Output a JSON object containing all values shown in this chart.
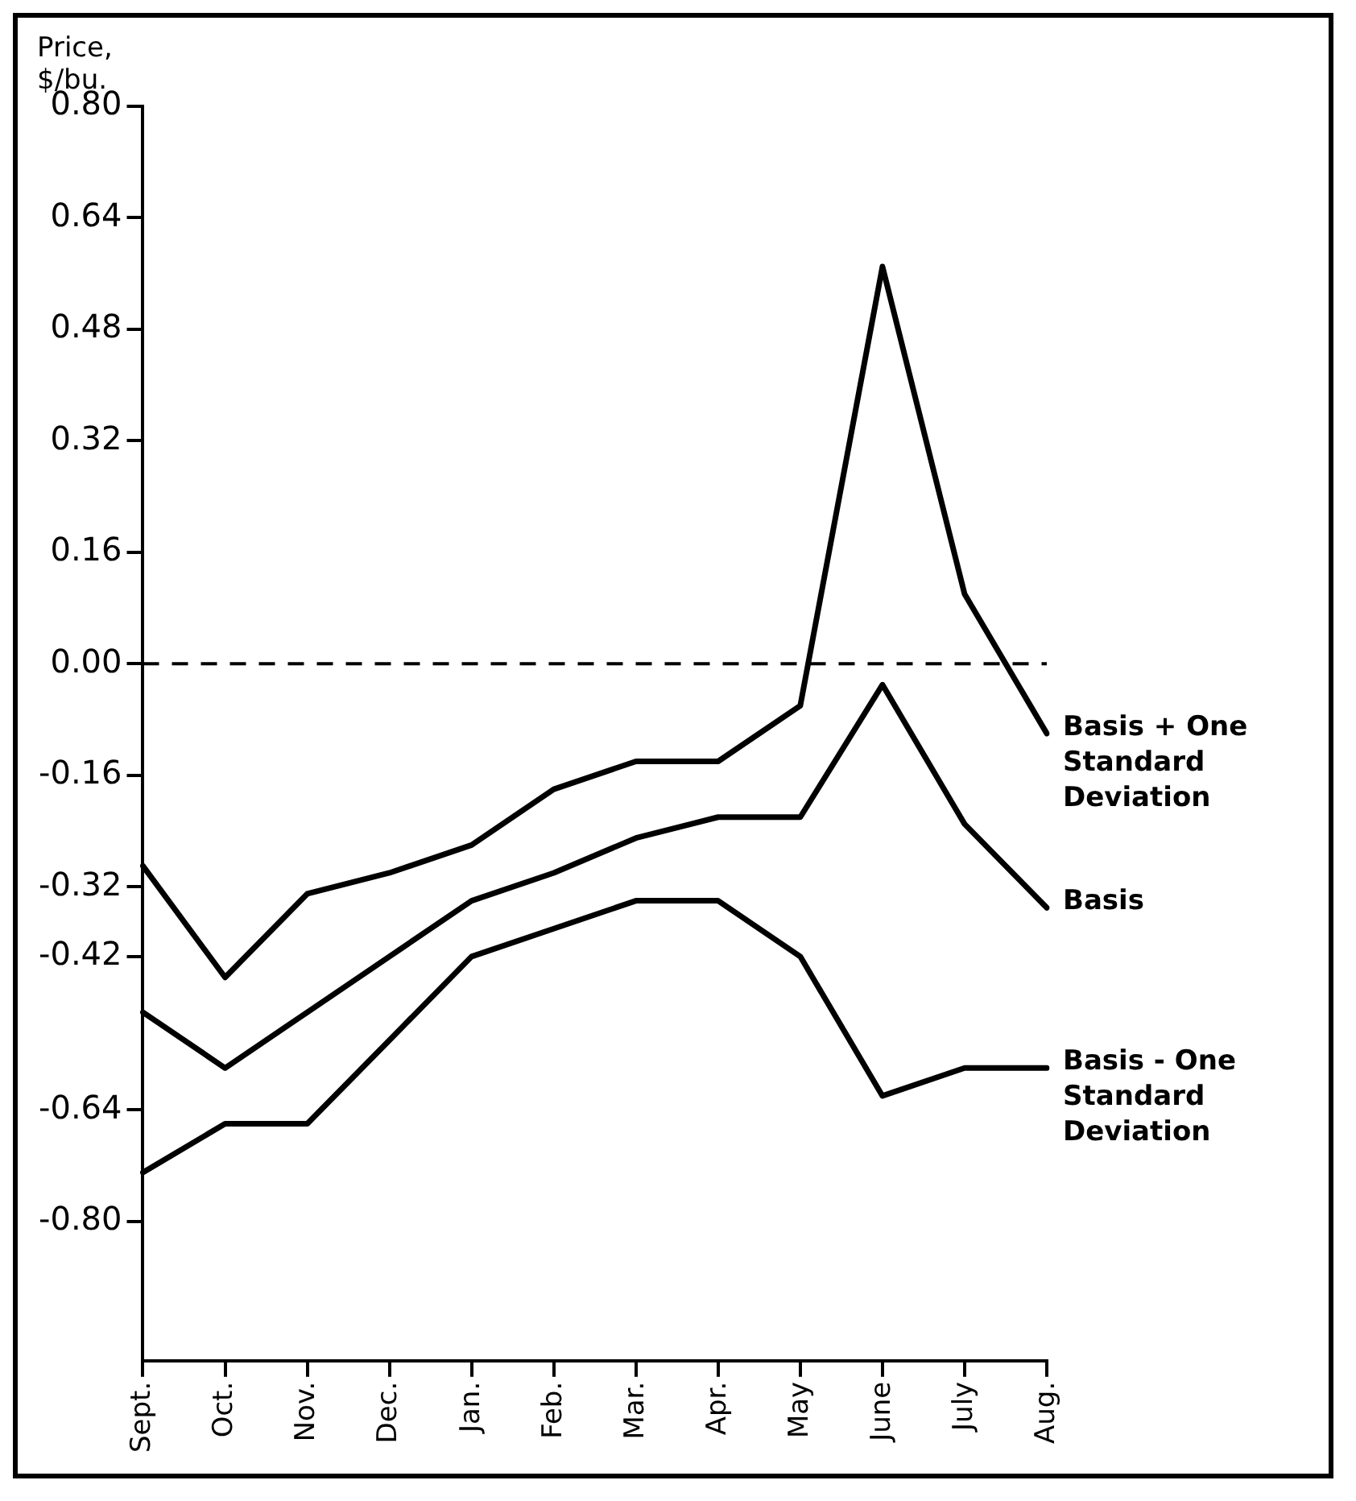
{
  "chart_data": {
    "type": "line",
    "ylabel": "Price, $/bu.",
    "categories": [
      "Sept.",
      "Oct.",
      "Nov.",
      "Dec.",
      "Jan.",
      "Feb.",
      "Mar.",
      "Apr.",
      "May",
      "June",
      "July",
      "Aug."
    ],
    "series": [
      {
        "name": "Basis + One Standard Deviation",
        "color": "#000000",
        "values": [
          -0.29,
          -0.45,
          -0.33,
          -0.3,
          -0.26,
          -0.18,
          -0.14,
          -0.14,
          -0.06,
          0.57,
          0.1,
          -0.1
        ]
      },
      {
        "name": "Basis",
        "color": "#000000",
        "values": [
          -0.5,
          -0.58,
          -0.5,
          -0.42,
          -0.34,
          -0.3,
          -0.25,
          -0.22,
          -0.22,
          -0.03,
          -0.23,
          -0.35
        ]
      },
      {
        "name": "Basis - One Standard Deviation",
        "color": "#000000",
        "values": [
          -0.73,
          -0.66,
          -0.66,
          -0.54,
          -0.42,
          -0.38,
          -0.34,
          -0.34,
          -0.42,
          -0.62,
          -0.58,
          -0.58
        ]
      }
    ],
    "ylim": [
      -1.0,
      0.8
    ],
    "yticks": [
      {
        "value": 0.8,
        "label": "0.80"
      },
      0.64,
      0.48,
      0.32,
      0.16,
      {
        "value": 0,
        "label": "0.00"
      },
      -0.16,
      -0.32,
      -0.42,
      -0.64,
      {
        "value": -0.8,
        "label": "-0.80"
      }
    ],
    "ref_lines": [
      {
        "axis": "y",
        "value": 0,
        "line_style": "dashed",
        "color": "#000000"
      }
    ],
    "grid": false,
    "legend": false,
    "marker": "none",
    "line_style": "solid"
  }
}
